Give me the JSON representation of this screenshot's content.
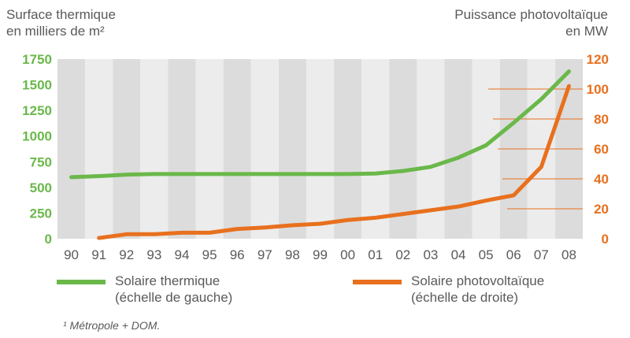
{
  "chart_data": {
    "type": "line",
    "left_axis_title": [
      "Surface thermique",
      "en milliers de m²"
    ],
    "right_axis_title": [
      "Puissance photovoltaïque",
      "en MW"
    ],
    "categories": [
      "90",
      "91",
      "92",
      "93",
      "94",
      "95",
      "96",
      "97",
      "98",
      "99",
      "00",
      "01",
      "02",
      "03",
      "04",
      "05",
      "06",
      "07",
      "08"
    ],
    "y_left": {
      "min": 0,
      "max": 1750,
      "ticks": [
        "0",
        "250",
        "500",
        "750",
        "1000",
        "1250",
        "1500",
        "1750"
      ],
      "color": "#6ab84a"
    },
    "y_right": {
      "min": 0,
      "max": 120,
      "ticks": [
        "0",
        "20",
        "40",
        "60",
        "80",
        "100",
        "120"
      ],
      "color": "#e8701e"
    },
    "grid": "alternating vertical bands",
    "series": [
      {
        "name": "Solaire thermique (échelle de gauche)",
        "axis": "left",
        "color": "#6ab84a",
        "values": [
          600,
          610,
          625,
          630,
          630,
          630,
          630,
          630,
          630,
          630,
          630,
          635,
          660,
          700,
          790,
          910,
          1130,
          1360,
          1630
        ]
      },
      {
        "name": "Solaire photovoltaïque (échelle de droite)",
        "axis": "right",
        "color": "#e8701e",
        "values": [
          null,
          0.5,
          3,
          3,
          4,
          4,
          6.5,
          7.5,
          9,
          10,
          12.5,
          14,
          16.5,
          19,
          21.5,
          25.5,
          29,
          48,
          102
        ]
      }
    ]
  },
  "legend": [
    {
      "line1": "Solaire thermique",
      "line2": "(échelle de gauche)",
      "color": "#6ab84a"
    },
    {
      "line1": "Solaire photovoltaïque",
      "line2": "(échelle de droite)",
      "color": "#e8701e"
    }
  ],
  "footnote": "¹ Métropole + DOM."
}
